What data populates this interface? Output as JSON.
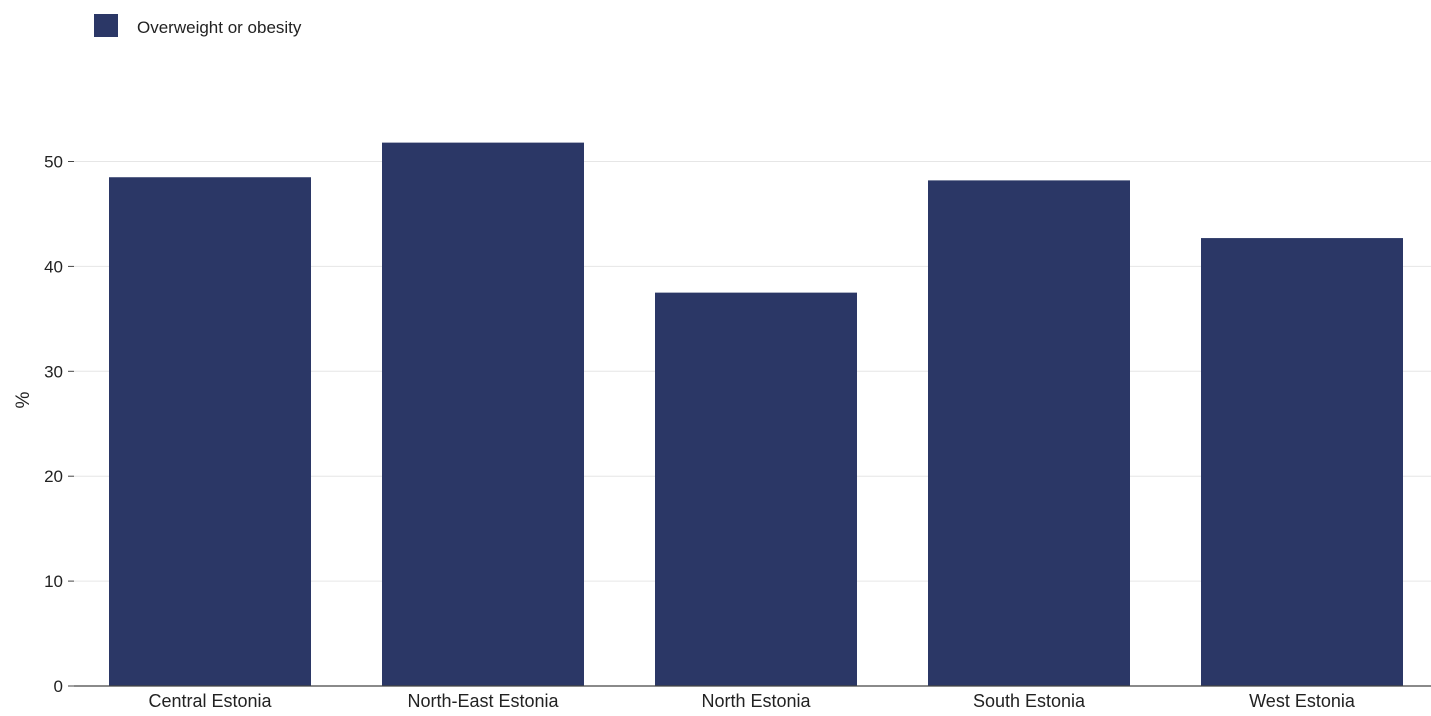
{
  "chart_data": {
    "type": "bar",
    "categories": [
      "Central Estonia",
      "North-East Estonia",
      "North Estonia",
      "South Estonia",
      "West Estonia"
    ],
    "series": [
      {
        "name": "Overweight or obesity",
        "values": [
          48.5,
          51.8,
          37.5,
          48.2,
          42.7
        ],
        "color": "#2b3766"
      }
    ],
    "xlabel": "",
    "ylabel": "%",
    "ylim": [
      0,
      55
    ],
    "yticks": [
      0,
      10,
      20,
      30,
      40,
      50
    ],
    "grid": true,
    "legend_position": "top-left"
  }
}
